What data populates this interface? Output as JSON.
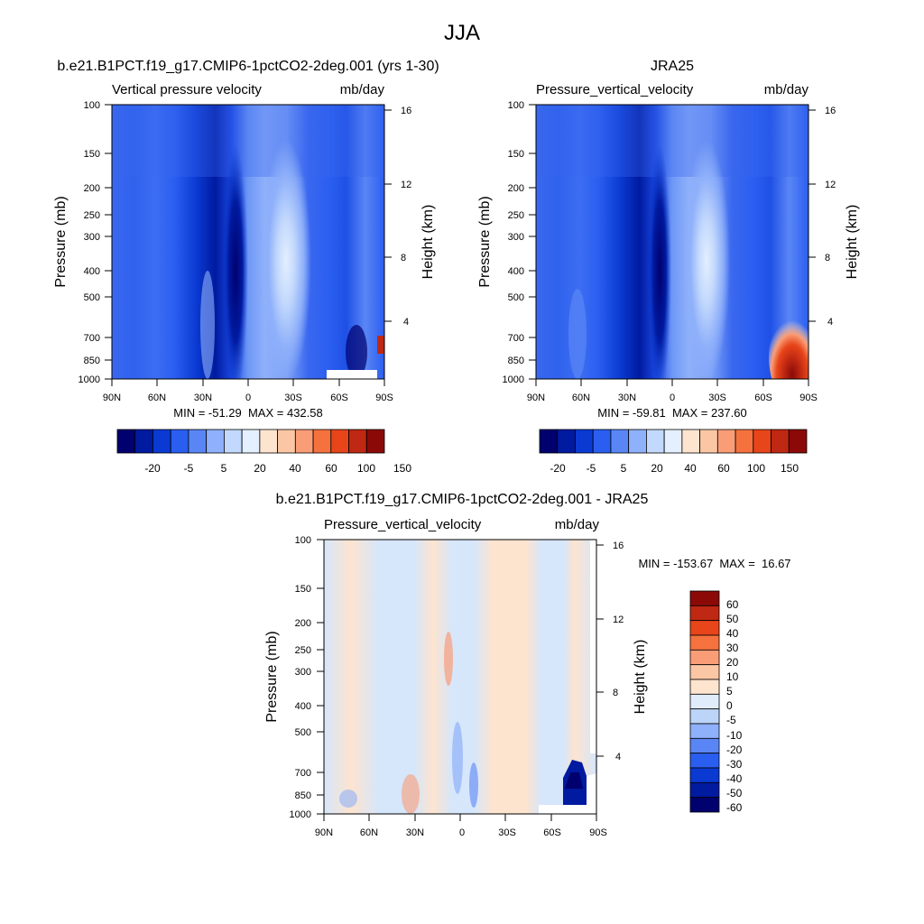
{
  "figure_title": "JJA",
  "chart_data": [
    {
      "type": "heatmap",
      "title": "b.e21.B1PCT.f19_g17.CMIP6-1pctCO2-2deg.001 (yrs 1-30)",
      "subtitle_left": "Vertical pressure velocity",
      "subtitle_right": "mb/day",
      "xlabel": "",
      "ylabel": "Pressure (mb)",
      "y2label": "Height (km)",
      "x_ticks": [
        "90N",
        "60N",
        "30N",
        "0",
        "30S",
        "60S",
        "90S"
      ],
      "y_ticks": [
        "100",
        "150",
        "200",
        "250",
        "300",
        "400",
        "500",
        "700",
        "850",
        "1000"
      ],
      "y2_ticks": [
        "16",
        "12",
        "8",
        "4"
      ],
      "stats": "MIN = -51.29  MAX = 432.58",
      "min": -51.29,
      "max": 432.58,
      "colorbar_labels": [
        "-20",
        "-5",
        "5",
        "20",
        "40",
        "60",
        "100",
        "150"
      ]
    },
    {
      "type": "heatmap",
      "title": "JRA25",
      "subtitle_left": "Pressure_vertical_velocity",
      "subtitle_right": "mb/day",
      "xlabel": "",
      "ylabel": "Pressure (mb)",
      "y2label": "Height (km)",
      "x_ticks": [
        "90N",
        "60N",
        "30N",
        "0",
        "30S",
        "60S",
        "90S"
      ],
      "y_ticks": [
        "100",
        "150",
        "200",
        "250",
        "300",
        "400",
        "500",
        "700",
        "850",
        "1000"
      ],
      "y2_ticks": [
        "16",
        "12",
        "8",
        "4"
      ],
      "stats": "MIN = -59.81  MAX = 237.60",
      "min": -59.81,
      "max": 237.6,
      "colorbar_labels": [
        "-20",
        "-5",
        "5",
        "20",
        "40",
        "60",
        "100",
        "150"
      ]
    },
    {
      "type": "heatmap",
      "title": "b.e21.B1PCT.f19_g17.CMIP6-1pctCO2-2deg.001 - JRA25",
      "subtitle_left": "Pressure_vertical_velocity",
      "subtitle_right": "mb/day",
      "xlabel": "",
      "ylabel": "Pressure (mb)",
      "y2label": "Height (km)",
      "x_ticks": [
        "90N",
        "60N",
        "30N",
        "0",
        "30S",
        "60S",
        "90S"
      ],
      "y_ticks": [
        "100",
        "150",
        "200",
        "250",
        "300",
        "400",
        "500",
        "700",
        "850",
        "1000"
      ],
      "y2_ticks": [
        "16",
        "12",
        "8",
        "4"
      ],
      "stats": "MIN = -153.67  MAX =  16.67",
      "min": -153.67,
      "max": 16.67,
      "colorbar_labels": [
        "60",
        "50",
        "40",
        "30",
        "20",
        "10",
        "5",
        "0",
        "-5",
        "-10",
        "-20",
        "-30",
        "-40",
        "-50",
        "-60"
      ]
    }
  ],
  "colors": {
    "fill_colors_top": [
      "#00006e",
      "#001aa0",
      "#0a3ad2",
      "#2a5ef0",
      "#5a86f5",
      "#8fb0fa",
      "#c2d8fc",
      "#e4efff",
      "#fde4cf",
      "#fbc6a4",
      "#f99d77",
      "#f5723e",
      "#e8451a",
      "#bf2812",
      "#8b0a07"
    ],
    "fill_colors_diff": [
      "#8b0a07",
      "#bf2812",
      "#e8451a",
      "#f5723e",
      "#f99d77",
      "#fbc6a4",
      "#fde4cf",
      "#e0ecfa",
      "#bcd4f8",
      "#8fb0fa",
      "#5a86f5",
      "#2a5ef0",
      "#0a3ad2",
      "#001aa0",
      "#00006e"
    ]
  }
}
